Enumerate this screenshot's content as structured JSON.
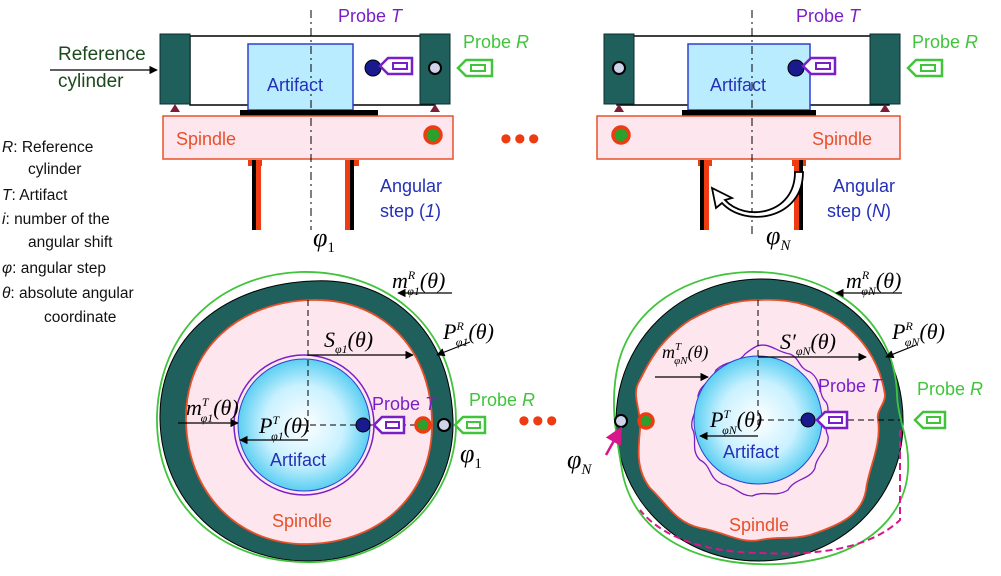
{
  "colors": {
    "teal": "#1f5f5c",
    "spindle_fill": "#fde6ee",
    "spindle_stroke": "#e8502a",
    "artifact_fill": "#b9ecff",
    "probe_t": "#7a1fc8",
    "probe_r": "#41c43c",
    "ref_text": "#1d4a1d",
    "dots": "#ee3b12",
    "blue_text": "#2430b8"
  },
  "top_left": {
    "reference_label_1": "Reference",
    "reference_label_2": "cylinder",
    "probe_t": {
      "text": "Probe ",
      "var": "T"
    },
    "probe_r": {
      "text": "Probe ",
      "var": "R"
    },
    "artifact": "Artifact",
    "spindle": "Spindle",
    "angular_1": "Angular",
    "angular_2": {
      "pre": "step (",
      "var": "1",
      "post": ")"
    },
    "phi_label": {
      "main": "φ",
      "sub": "1"
    }
  },
  "top_right": {
    "probe_t": {
      "text": "Probe ",
      "var": "T"
    },
    "probe_r": {
      "text": "Probe ",
      "var": "R"
    },
    "artifact": "Artifact",
    "spindle": "Spindle",
    "angular_1": "Angular",
    "angular_2": {
      "pre": "step (",
      "var": "N",
      "post": ")"
    },
    "phi_label": {
      "main": "φ",
      "sub": "N"
    }
  },
  "legend": [
    {
      "sym": "R",
      "text": ": Reference",
      "cont": "cylinder"
    },
    {
      "sym": "T",
      "text": ": Artifact",
      "cont": ""
    },
    {
      "sym": "i",
      "text": ": number of the",
      "cont": "angular shift"
    },
    {
      "sym": "φ",
      "text": ": angular step",
      "cont": ""
    },
    {
      "sym": "θ",
      "text": ": absolute angular",
      "cont": "coordinate"
    }
  ],
  "bottom_left": {
    "m_r": {
      "main": "m",
      "sup": "R",
      "sub": "φ1",
      "arg": "(θ)"
    },
    "s": {
      "main": "S",
      "sub": "φ1",
      "arg": "(θ)"
    },
    "p_r": {
      "main": "P",
      "sup": "R",
      "sub": "φ1",
      "arg": "(θ)"
    },
    "m_t": {
      "main": "m",
      "sup": "T",
      "sub": "φ1",
      "arg": "(θ)"
    },
    "p_t": {
      "main": "P",
      "sup": "T",
      "sub": "φ1",
      "arg": "(θ)"
    },
    "probe_t": {
      "text": "Probe ",
      "var": "T"
    },
    "probe_r": {
      "text": "Probe ",
      "var": "R"
    },
    "artifact": "Artifact",
    "spindle": "Spindle",
    "phi_label": {
      "main": "φ",
      "sub": "1"
    }
  },
  "bottom_right": {
    "m_r": {
      "main": "m",
      "sup": "R",
      "sub": "φN",
      "arg": "(θ)"
    },
    "s": {
      "main": "S′",
      "sub": "φN",
      "arg": "(θ)"
    },
    "p_r": {
      "main": "P",
      "sup": "R",
      "sub": "φN",
      "arg": "(θ)"
    },
    "m_t": {
      "main": "m",
      "sup": "T",
      "sub": "φN",
      "arg": "(θ)"
    },
    "p_t": {
      "main": "P",
      "sup": "T",
      "sub": "φN",
      "arg": "(θ)"
    },
    "probe_t": {
      "text": "Probe ",
      "var": "T"
    },
    "probe_r": {
      "text": "Probe ",
      "var": "R"
    },
    "artifact": "Artifact",
    "spindle": "Spindle",
    "phi_label": {
      "main": "φ",
      "sub": "N"
    }
  },
  "ellipsis": "•••"
}
